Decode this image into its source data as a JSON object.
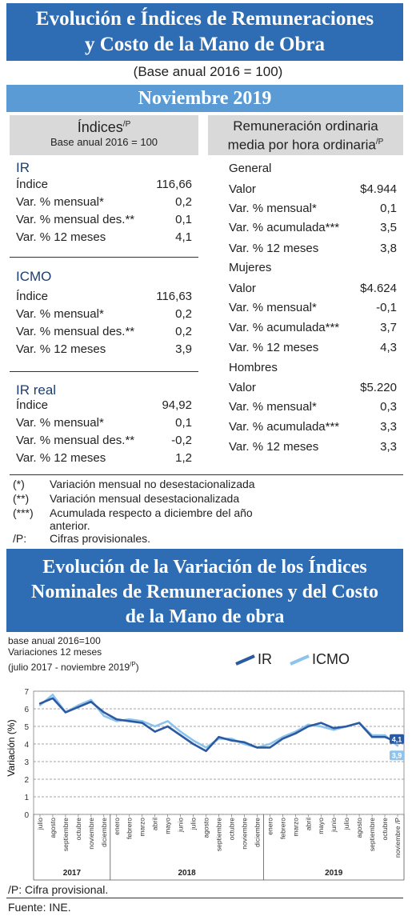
{
  "header": {
    "title_line1": "Evolución e Índices de Remuneraciones",
    "title_line2": "y Costo de la Mano de Obra",
    "subtitle": "(Base anual 2016 = 100)",
    "month": "Noviembre 2019"
  },
  "left_panel": {
    "header": "Índices",
    "header_sup": "/P",
    "header_sub": "Base anual 2016 = 100",
    "sections": [
      {
        "title": "IR",
        "rows": [
          {
            "label": "Índice",
            "value": "116,66"
          },
          {
            "label": "Var. % mensual*",
            "value": "0,2"
          },
          {
            "label": "Var. % mensual des.**",
            "value": "0,1"
          },
          {
            "label": "Var. % 12 meses",
            "value": "4,1"
          }
        ]
      },
      {
        "title": "ICMO",
        "rows": [
          {
            "label": "Índice",
            "value": "116,63"
          },
          {
            "label": "Var. % mensual*",
            "value": "0,2"
          },
          {
            "label": "Var. % mensual des.**",
            "value": "0,2"
          },
          {
            "label": "Var. % 12 meses",
            "value": "3,9"
          }
        ]
      },
      {
        "title": "IR real",
        "rows": [
          {
            "label": "Índice",
            "value": "94,92"
          },
          {
            "label": "Var. % mensual*",
            "value": "0,1"
          },
          {
            "label": "Var. % mensual des.**",
            "value": "-0,2"
          },
          {
            "label": "Var. % 12 meses",
            "value": "1,2"
          }
        ]
      }
    ]
  },
  "right_panel": {
    "header_line1": "Remuneración ordinaria",
    "header_line2": "media por hora ordinaria",
    "header_sup": "/P",
    "sections": [
      {
        "title": "General",
        "rows": [
          {
            "label": "Valor",
            "value": "$4.944"
          },
          {
            "label": "Var. % mensual*",
            "value": "0,1"
          },
          {
            "label": "Var. % acumulada***",
            "value": "3,5"
          },
          {
            "label": "Var. % 12 meses",
            "value": "3,8"
          }
        ]
      },
      {
        "title": "Mujeres",
        "rows": [
          {
            "label": "Valor",
            "value": "$4.624"
          },
          {
            "label": "Var. % mensual*",
            "value": "-0,1"
          },
          {
            "label": "Var. % acumulada***",
            "value": "3,7"
          },
          {
            "label": "Var. % 12 meses",
            "value": "4,3"
          }
        ]
      },
      {
        "title": "Hombres",
        "rows": [
          {
            "label": "Valor",
            "value": "$5.220"
          },
          {
            "label": "Var. % mensual*",
            "value": "0,3"
          },
          {
            "label": "Var. % acumulada***",
            "value": "3,3"
          },
          {
            "label": "Var. % 12 meses",
            "value": "3,3"
          }
        ]
      }
    ]
  },
  "notes": [
    {
      "key": "(*)",
      "text": "Variación mensual no desestacionalizada"
    },
    {
      "key": "(**)",
      "text": "Variación mensual desestacionalizada"
    },
    {
      "key": "(***)",
      "text": "Acumulada respecto a diciembre del año"
    },
    {
      "key": "",
      "text": "anterior."
    },
    {
      "key": "/P:",
      "text": "Cifras provisionales."
    }
  ],
  "section2": {
    "title_line1": "Evolución de la Variación de los Índices",
    "title_line2": "Nominales de Remuneraciones y del Costo",
    "title_line3": "de la Mano de obra",
    "base": "base anual 2016=100",
    "variaciones": "Variaciones 12 meses",
    "period": "(julio 2017 - noviembre 2019",
    "period_sup": "/P",
    "period_close": ")",
    "footnote": "/P: Cifra provisional.",
    "source": "Fuente: INE."
  },
  "chart_data": {
    "type": "line",
    "ylabel": "Variación (%)",
    "ylim": [
      0,
      7
    ],
    "yticks": [
      "0",
      "1",
      "2",
      "3",
      "4",
      "5",
      "6",
      "7"
    ],
    "grid": true,
    "legend_position": "top-right",
    "x": [
      "julio",
      "agosto",
      "septiembre",
      "octubre",
      "noviembre",
      "diciembre",
      "enero",
      "febrero",
      "marzo",
      "abril",
      "mayo",
      "junio",
      "julio",
      "agosto",
      "septiembre",
      "octubre",
      "noviembre",
      "diciembre",
      "enero",
      "febrero",
      "marzo",
      "abril",
      "mayo",
      "junio",
      "julio",
      "agosto",
      "septiembre",
      "octubre",
      "noviembre /P"
    ],
    "years": [
      {
        "label": "2017",
        "from": 0,
        "to": 5
      },
      {
        "label": "2018",
        "from": 6,
        "to": 17
      },
      {
        "label": "2019",
        "from": 18,
        "to": 28
      }
    ],
    "series": [
      {
        "name": "IR",
        "color": "#2b5aa0",
        "values": [
          6.3,
          6.6,
          5.8,
          6.1,
          6.4,
          5.8,
          5.4,
          5.3,
          5.2,
          4.7,
          5.0,
          4.5,
          4.0,
          3.6,
          4.4,
          4.2,
          4.1,
          3.8,
          3.8,
          4.3,
          4.6,
          5.0,
          5.2,
          4.9,
          5.0,
          5.2,
          4.4,
          4.4,
          4.1
        ]
      },
      {
        "name": "ICMO",
        "color": "#8ec3ec",
        "values": [
          6.2,
          6.8,
          5.8,
          6.2,
          6.5,
          5.6,
          5.3,
          5.4,
          5.3,
          5.0,
          5.3,
          4.7,
          4.2,
          3.8,
          4.3,
          4.3,
          4.0,
          3.8,
          4.0,
          4.4,
          4.7,
          5.1,
          5.0,
          4.8,
          5.0,
          5.2,
          4.5,
          4.5,
          3.9
        ]
      }
    ],
    "end_labels": {
      "IR": "4,1",
      "ICMO": "3,9"
    }
  }
}
